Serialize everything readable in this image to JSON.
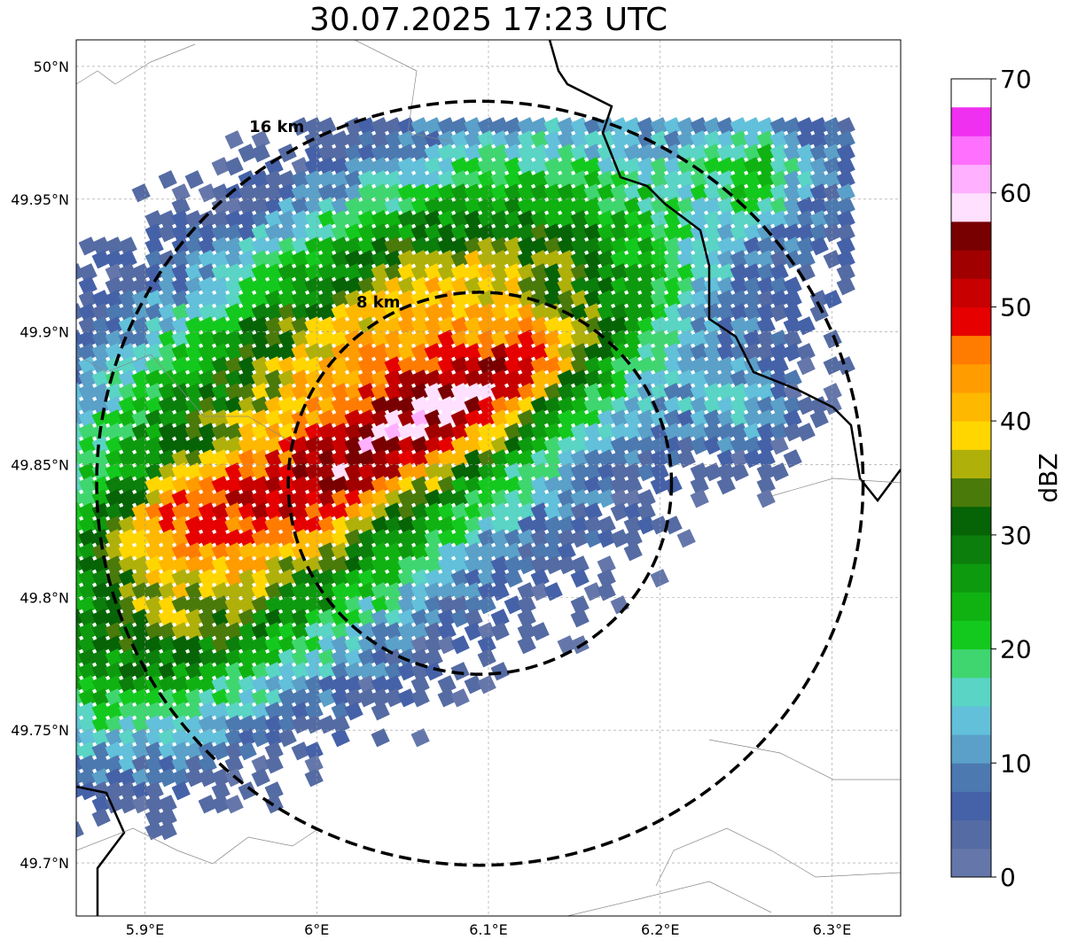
{
  "title": "30.07.2025 17:23 UTC",
  "map": {
    "lon_range": [
      5.86,
      6.34
    ],
    "lat_range": [
      49.68,
      50.01
    ],
    "lon_ticks": [
      {
        "value": 5.9,
        "label": "5.9°E"
      },
      {
        "value": 6.0,
        "label": "6°E"
      },
      {
        "value": 6.1,
        "label": "6.1°E"
      },
      {
        "value": 6.2,
        "label": "6.2°E"
      },
      {
        "value": 6.3,
        "label": "6.3°E"
      }
    ],
    "lat_ticks": [
      {
        "value": 50.0,
        "label": "50°N"
      },
      {
        "value": 49.95,
        "label": "49.95°N"
      },
      {
        "value": 49.9,
        "label": "49.9°N"
      },
      {
        "value": 49.85,
        "label": "49.85°N"
      },
      {
        "value": 49.8,
        "label": "49.8°N"
      },
      {
        "value": 49.75,
        "label": "49.75°N"
      },
      {
        "value": 49.7,
        "label": "49.7°N"
      }
    ],
    "grid": true,
    "radar_center": {
      "lon": 6.095,
      "lat": 49.843
    },
    "range_rings": [
      {
        "label": "8 km",
        "radius_km": 8
      },
      {
        "label": "16 km",
        "radius_km": 16
      }
    ]
  },
  "colorbar": {
    "label": "dBZ",
    "min": 0,
    "max": 70,
    "step": 2.5,
    "tick_values": [
      0,
      10,
      20,
      30,
      40,
      50,
      60,
      70
    ],
    "tick_labels": [
      "0",
      "10",
      "20",
      "30",
      "40",
      "50",
      "60",
      "70"
    ],
    "colors": [
      "#6577aa",
      "#556ba3",
      "#4562a8",
      "#4c79b0",
      "#5aa0c8",
      "#62c0da",
      "#5ad4c4",
      "#3fd670",
      "#14c91e",
      "#10b212",
      "#0e9a0e",
      "#0b7e0b",
      "#066306",
      "#4a7a0a",
      "#b0b00a",
      "#ffd600",
      "#ffb800",
      "#ff9c00",
      "#ff7c00",
      "#e60000",
      "#c80000",
      "#a00000",
      "#780000",
      "#ffe0ff",
      "#ffb0ff",
      "#ff70ff",
      "#f030f0"
    ]
  },
  "chart_data": {
    "type": "heatmap",
    "title": "30.07.2025 17:23 UTC",
    "xlabel": "",
    "ylabel": "",
    "colorbar_label": "dBZ",
    "value_range": [
      0,
      70
    ],
    "echo_regions": [
      {
        "description_values_dbz": [
          0,
          30
        ],
        "lon": [
          5.86,
          6.25
        ],
        "lat": [
          49.72,
          49.97
        ]
      },
      {
        "description_values_dbz": [
          40,
          48
        ],
        "lon": [
          5.86,
          6.14
        ],
        "lat": [
          49.79,
          49.9
        ]
      }
    ],
    "coastline_colors": {
      "border": "#000000",
      "admin": "#888888"
    }
  }
}
